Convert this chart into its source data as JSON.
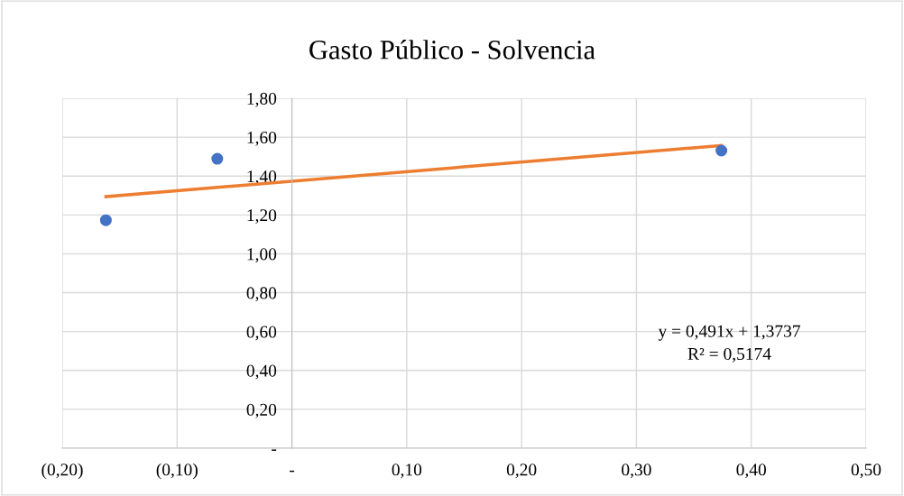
{
  "chart_data": {
    "type": "scatter",
    "title": "Gasto Público - Solvencia",
    "series": [
      {
        "color": "#4472c4",
        "marker": "circle",
        "x": [
          -0.162,
          -0.065,
          0.374
        ],
        "values": [
          1.173,
          1.489,
          1.531
        ]
      },
      {
        "type": "line",
        "marker": "none",
        "color": "#ed7d31",
        "x": [
          -0.162,
          0.374
        ],
        "values": [
          1.294,
          1.557
        ]
      }
    ],
    "annotations": [
      "y = 0,491x + 1,3737",
      "R² = 0,5174"
    ],
    "xlim": [
      -0.2,
      0.5
    ],
    "xticks": [
      {
        "value": -0.2,
        "label": "(0,20)"
      },
      {
        "value": -0.1,
        "label": "(0,10)"
      },
      {
        "value": 0,
        "label": "-"
      },
      {
        "value": 0.1,
        "label": "0,10"
      },
      {
        "value": 0.2,
        "label": "0,20"
      },
      {
        "value": 0.3,
        "label": "0,30"
      },
      {
        "value": 0.4,
        "label": "0,40"
      },
      {
        "value": 0.5,
        "label": "0,50"
      }
    ],
    "ylim": [
      0,
      1.8
    ],
    "yticks": [
      {
        "value": 0,
        "label": "-"
      },
      {
        "value": 0.2,
        "label": "0,20"
      },
      {
        "value": 0.4,
        "label": "0,40"
      },
      {
        "value": 0.6,
        "label": "0,60"
      },
      {
        "value": 0.8,
        "label": "0,80"
      },
      {
        "value": 1.0,
        "label": "1,00"
      },
      {
        "value": 1.2,
        "label": "1,20"
      },
      {
        "value": 1.4,
        "label": "1,40"
      },
      {
        "value": 1.6,
        "label": "1,60"
      },
      {
        "value": 1.8,
        "label": "1,80"
      }
    ],
    "grid": true
  }
}
